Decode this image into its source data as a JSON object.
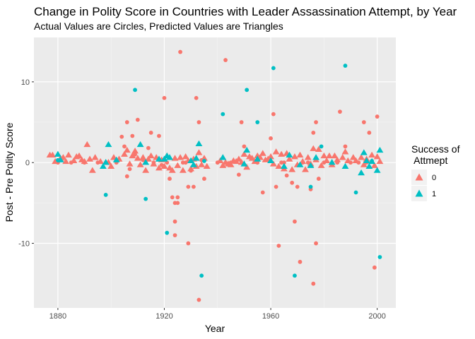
{
  "chart_data": {
    "type": "scatter",
    "title": "Change in Polity Score in Countries with Leader Assassination Attempt, by Year",
    "subtitle": "Actual Values are Circles, Predicted Values are Triangles",
    "xlabel": "Year",
    "ylabel": "Post - Pre Polity Score",
    "xlim": [
      1871,
      2007
    ],
    "ylim": [
      -18,
      15.5
    ],
    "x_ticks": [
      1880,
      1920,
      1960,
      2000
    ],
    "y_ticks": [
      -10,
      0,
      10
    ],
    "grid": true,
    "legend": {
      "title_lines": [
        "Success of",
        " Attmept"
      ],
      "placement": "right",
      "entries": [
        {
          "label": "0",
          "color": "#F8766D"
        },
        {
          "label": "1",
          "color": "#00BFC4"
        }
      ]
    },
    "series": [
      {
        "name": "0",
        "color": "#F8766D",
        "actual": [
          [
            1880,
            0
          ],
          [
            1885,
            0
          ],
          [
            1890,
            0
          ],
          [
            1895,
            0
          ],
          [
            1898,
            0
          ],
          [
            1902,
            0
          ],
          [
            1904,
            3.2
          ],
          [
            1905,
            2
          ],
          [
            1906,
            5
          ],
          [
            1906,
            -1.7
          ],
          [
            1907,
            -0.8
          ],
          [
            1908,
            3.3
          ],
          [
            1909,
            1
          ],
          [
            1910,
            5.3
          ],
          [
            1912,
            0.3
          ],
          [
            1914,
            1.8
          ],
          [
            1915,
            3.7
          ],
          [
            1916,
            0
          ],
          [
            1918,
            3.3
          ],
          [
            1919,
            -0.3
          ],
          [
            1920,
            8
          ],
          [
            1921,
            0
          ],
          [
            1922,
            -2
          ],
          [
            1923,
            -4.3
          ],
          [
            1924,
            -5
          ],
          [
            1924,
            -7.3
          ],
          [
            1924,
            -9
          ],
          [
            1925,
            -5
          ],
          [
            1925,
            -4.3
          ],
          [
            1926,
            13.7
          ],
          [
            1927,
            0
          ],
          [
            1928,
            0
          ],
          [
            1929,
            -3
          ],
          [
            1930,
            -1
          ],
          [
            1931,
            -3
          ],
          [
            1932,
            8
          ],
          [
            1933,
            5
          ],
          [
            1933,
            -17
          ],
          [
            1934,
            0.3
          ],
          [
            1935,
            -2
          ],
          [
            1929,
            -10
          ],
          [
            1940,
            0
          ],
          [
            1943,
            12.7
          ],
          [
            1945,
            0
          ],
          [
            1948,
            -1.5
          ],
          [
            1949,
            5
          ],
          [
            1950,
            2
          ],
          [
            1952,
            0.7
          ],
          [
            1955,
            0
          ],
          [
            1957,
            -3.7
          ],
          [
            1960,
            3
          ],
          [
            1961,
            6
          ],
          [
            1962,
            -3
          ],
          [
            1963,
            -10.3
          ],
          [
            1964,
            0
          ],
          [
            1965,
            0
          ],
          [
            1966,
            -1.6
          ],
          [
            1968,
            -2.5
          ],
          [
            1969,
            -7.3
          ],
          [
            1970,
            -3
          ],
          [
            1971,
            -12.3
          ],
          [
            1972,
            0
          ],
          [
            1974,
            0
          ],
          [
            1975,
            -3.3
          ],
          [
            1976,
            3.7
          ],
          [
            1977,
            5
          ],
          [
            1977,
            -10
          ],
          [
            1978,
            -2
          ],
          [
            1980,
            0
          ],
          [
            1985,
            0
          ],
          [
            1986,
            6.3
          ],
          [
            1988,
            2
          ],
          [
            1990,
            0
          ],
          [
            1993,
            0
          ],
          [
            1995,
            5
          ],
          [
            1996,
            0
          ],
          [
            1997,
            3.7
          ],
          [
            1999,
            -13
          ],
          [
            2000,
            5.7
          ],
          [
            1976,
            -15
          ]
        ],
        "predicted": [
          [
            1877,
            0.9
          ],
          [
            1878,
            0.9
          ],
          [
            1879,
            0.1
          ],
          [
            1881,
            0.5
          ],
          [
            1882,
            0.6
          ],
          [
            1883,
            0.1
          ],
          [
            1884,
            0.9
          ],
          [
            1886,
            0.2
          ],
          [
            1887,
            0.7
          ],
          [
            1888,
            0.8
          ],
          [
            1889,
            0.3
          ],
          [
            1890,
            0.1
          ],
          [
            1891,
            2.2
          ],
          [
            1892,
            0.4
          ],
          [
            1893,
            -1
          ],
          [
            1894,
            0.6
          ],
          [
            1896,
            0.1
          ],
          [
            1899,
            0
          ],
          [
            1900,
            -0.5
          ],
          [
            1901,
            0.6
          ],
          [
            1903,
            0.4
          ],
          [
            1905,
            1
          ],
          [
            1906,
            1.5
          ],
          [
            1907,
            -0.2
          ],
          [
            1908,
            0.8
          ],
          [
            1909,
            1.4
          ],
          [
            1910,
            0.5
          ],
          [
            1911,
            -0.3
          ],
          [
            1912,
            0.6
          ],
          [
            1913,
            -1
          ],
          [
            1914,
            0.4
          ],
          [
            1915,
            0.8
          ],
          [
            1916,
            -0.2
          ],
          [
            1917,
            0.6
          ],
          [
            1918,
            -0.7
          ],
          [
            1919,
            0.3
          ],
          [
            1920,
            -0.5
          ],
          [
            1921,
            0.8
          ],
          [
            1922,
            -0.7
          ],
          [
            1923,
            -1
          ],
          [
            1924,
            0.5
          ],
          [
            1925,
            -0.4
          ],
          [
            1926,
            0.6
          ],
          [
            1927,
            -1
          ],
          [
            1928,
            0.7
          ],
          [
            1929,
            0.2
          ],
          [
            1930,
            -0.8
          ],
          [
            1931,
            0.4
          ],
          [
            1932,
            -0.5
          ],
          [
            1933,
            1.2
          ],
          [
            1934,
            -0.3
          ],
          [
            1935,
            0.5
          ],
          [
            1936,
            -0.5
          ],
          [
            1942,
            -0.4
          ],
          [
            1943,
            0
          ],
          [
            1944,
            -0.2
          ],
          [
            1945,
            -0.3
          ],
          [
            1946,
            0.2
          ],
          [
            1947,
            0.1
          ],
          [
            1948,
            0.4
          ],
          [
            1949,
            0
          ],
          [
            1950,
            1
          ],
          [
            1951,
            -0.6
          ],
          [
            1952,
            0.7
          ],
          [
            1953,
            0.5
          ],
          [
            1954,
            0.1
          ],
          [
            1955,
            0.8
          ],
          [
            1956,
            0.6
          ],
          [
            1957,
            1.1
          ],
          [
            1958,
            0.3
          ],
          [
            1959,
            0.4
          ],
          [
            1960,
            0.7
          ],
          [
            1961,
            -0.2
          ],
          [
            1962,
            1.3
          ],
          [
            1963,
            -0.5
          ],
          [
            1964,
            1
          ],
          [
            1965,
            -0.8
          ],
          [
            1966,
            1.1
          ],
          [
            1967,
            0.4
          ],
          [
            1968,
            -0.9
          ],
          [
            1969,
            0.7
          ],
          [
            1970,
            -0.3
          ],
          [
            1971,
            0.9
          ],
          [
            1972,
            0.1
          ],
          [
            1973,
            -0.9
          ],
          [
            1974,
            0.6
          ],
          [
            1975,
            -0.2
          ],
          [
            1976,
            1.7
          ],
          [
            1977,
            0.3
          ],
          [
            1978,
            1.6
          ],
          [
            1979,
            -0.4
          ],
          [
            1980,
            0.8
          ],
          [
            1981,
            0.2
          ],
          [
            1982,
            0.8
          ],
          [
            1983,
            -0.3
          ],
          [
            1984,
            0.8
          ],
          [
            1985,
            0.3
          ],
          [
            1987,
            0.6
          ],
          [
            1988,
            1.3
          ],
          [
            1989,
            0.2
          ],
          [
            1991,
            0.6
          ],
          [
            1992,
            0.2
          ],
          [
            1994,
            0.6
          ],
          [
            1995,
            -0.3
          ],
          [
            1996,
            0.4
          ],
          [
            1998,
            0.9
          ],
          [
            1999,
            -0.4
          ],
          [
            2000,
            0.7
          ],
          [
            2001,
            0.1
          ],
          [
            1941,
            0.2
          ]
        ]
      },
      {
        "name": "1",
        "color": "#00BFC4",
        "actual": [
          [
            1898,
            -4
          ],
          [
            1909,
            9
          ],
          [
            1913,
            -4.5
          ],
          [
            1921,
            -8.7
          ],
          [
            1934,
            -14
          ],
          [
            1942,
            6
          ],
          [
            1951,
            9
          ],
          [
            1955,
            5
          ],
          [
            1961,
            11.7
          ],
          [
            1969,
            -14
          ],
          [
            1975,
            -3
          ],
          [
            1988,
            12
          ],
          [
            1992,
            -3.7
          ],
          [
            2001,
            -11.7
          ],
          [
            1880,
            0.3
          ],
          [
            1935,
            0.2
          ],
          [
            1979,
            2
          ],
          [
            1998,
            0.2
          ]
        ],
        "predicted": [
          [
            1880,
            1
          ],
          [
            1881,
            0.3
          ],
          [
            1897,
            -0.5
          ],
          [
            1898,
            0
          ],
          [
            1899,
            2.2
          ],
          [
            1902,
            0.3
          ],
          [
            1911,
            2.2
          ],
          [
            1913,
            0
          ],
          [
            1918,
            0.4
          ],
          [
            1920,
            0.4
          ],
          [
            1921,
            0.8
          ],
          [
            1922,
            0.6
          ],
          [
            1930,
            0.2
          ],
          [
            1931,
            -0.3
          ],
          [
            1932,
            0.5
          ],
          [
            1933,
            2.3
          ],
          [
            1942,
            0.6
          ],
          [
            1950,
            -0.2
          ],
          [
            1951,
            1.5
          ],
          [
            1955,
            0.4
          ],
          [
            1960,
            0.2
          ],
          [
            1965,
            -0.5
          ],
          [
            1967,
            0.9
          ],
          [
            1971,
            -0.3
          ],
          [
            1975,
            -0.4
          ],
          [
            1977,
            0.6
          ],
          [
            1983,
            0
          ],
          [
            1988,
            -0.5
          ],
          [
            1994,
            -1.3
          ],
          [
            1995,
            1.2
          ],
          [
            1996,
            0.2
          ],
          [
            1997,
            -0.5
          ],
          [
            1998,
            0.1
          ],
          [
            2000,
            -1
          ],
          [
            2001,
            1.5
          ]
        ]
      }
    ]
  }
}
